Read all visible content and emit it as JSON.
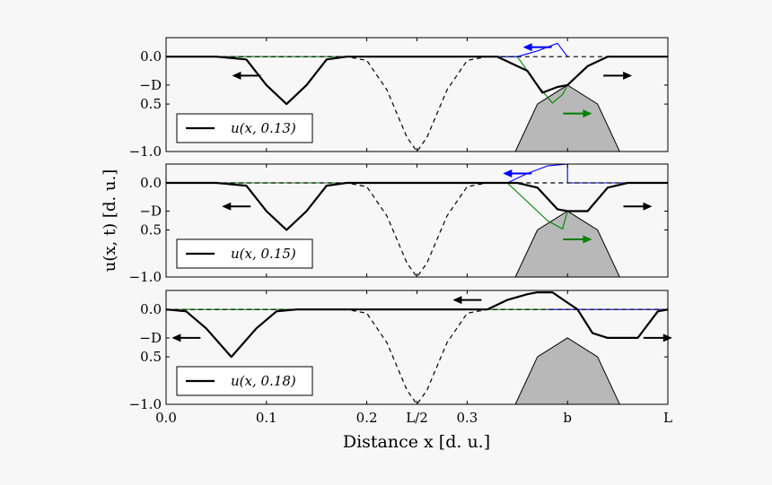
{
  "figure": {
    "xlabel": "Distance x [d. u.]",
    "ylabel": "u(x, t) [d. u.]"
  },
  "chart_data": [
    {
      "type": "line",
      "panel": 1,
      "legend": "u(x, 0.13)",
      "legend_placement": "lower-left",
      "xlim": [
        0.0,
        0.5
      ],
      "ylim": [
        -1.0,
        0.2
      ],
      "x_ticks": [
        {
          "value": 0.0,
          "label": ""
        },
        {
          "value": 0.1,
          "label": ""
        },
        {
          "value": 0.2,
          "label": ""
        },
        {
          "value": 0.25,
          "label": ""
        },
        {
          "value": 0.3,
          "label": ""
        },
        {
          "value": 0.4,
          "label": ""
        },
        {
          "value": 0.5,
          "label": ""
        }
      ],
      "y_ticks": [
        {
          "value": 0.0,
          "label": "0.0"
        },
        {
          "value": -0.3,
          "label": "−D"
        },
        {
          "value": -0.5,
          "label": "0.5"
        },
        {
          "value": -1.0,
          "label": "−1.0"
        }
      ],
      "series": [
        {
          "role": "initial-profile",
          "style": "dashed",
          "color": "#000000",
          "x": [
            0.0,
            0.16,
            0.18,
            0.2,
            0.22,
            0.24,
            0.25,
            0.26,
            0.28,
            0.3,
            0.32,
            0.34,
            0.5
          ],
          "y": [
            0.0,
            0.0,
            0.0,
            -0.04,
            -0.35,
            -0.85,
            -1.0,
            -0.85,
            -0.35,
            -0.04,
            0.0,
            0.0,
            0.0
          ]
        },
        {
          "role": "solution",
          "style": "solid-thick",
          "color": "#000000",
          "x": [
            0.0,
            0.05,
            0.08,
            0.1,
            0.12,
            0.14,
            0.16,
            0.18,
            0.3,
            0.33,
            0.36,
            0.375,
            0.39,
            0.4,
            0.42,
            0.44,
            0.5
          ],
          "y": [
            0.0,
            0.0,
            -0.03,
            -0.3,
            -0.5,
            -0.3,
            -0.03,
            0.0,
            0.0,
            0.0,
            -0.15,
            -0.38,
            -0.32,
            -0.3,
            -0.1,
            0.0,
            0.0
          ]
        },
        {
          "role": "upper-component",
          "style": "solid-thin",
          "color": "#0000ff",
          "x": [
            0.3,
            0.35,
            0.37,
            0.39,
            0.4
          ],
          "y": [
            0.0,
            0.0,
            0.06,
            0.14,
            0.0
          ]
        },
        {
          "role": "lower-component",
          "style": "solid-thin",
          "color": "#008000",
          "x": [
            0.0,
            0.35,
            0.37,
            0.385,
            0.395,
            0.4
          ],
          "y": [
            0.0,
            0.0,
            -0.3,
            -0.49,
            -0.4,
            -0.3
          ]
        },
        {
          "role": "obstacle",
          "style": "filled",
          "color": "#b8b8b8",
          "x": [
            0.348,
            0.37,
            0.4,
            0.43,
            0.452
          ],
          "y": [
            -1.0,
            -0.5,
            -0.3,
            -0.5,
            -1.0
          ]
        }
      ],
      "arrows": [
        {
          "color": "#000000",
          "direction": "left",
          "x": 0.08,
          "y": -0.2
        },
        {
          "color": "#0000ff",
          "direction": "left",
          "x": 0.37,
          "y": 0.1
        },
        {
          "color": "#008000",
          "direction": "right",
          "x": 0.41,
          "y": -0.6
        },
        {
          "color": "#000000",
          "direction": "right",
          "x": 0.45,
          "y": -0.2
        }
      ]
    },
    {
      "type": "line",
      "panel": 2,
      "legend": "u(x, 0.15)",
      "legend_placement": "lower-left",
      "xlim": [
        0.0,
        0.5
      ],
      "ylim": [
        -1.0,
        0.2
      ],
      "x_ticks": [
        {
          "value": 0.0,
          "label": ""
        },
        {
          "value": 0.1,
          "label": ""
        },
        {
          "value": 0.2,
          "label": ""
        },
        {
          "value": 0.25,
          "label": ""
        },
        {
          "value": 0.3,
          "label": ""
        },
        {
          "value": 0.4,
          "label": ""
        },
        {
          "value": 0.5,
          "label": ""
        }
      ],
      "y_ticks": [
        {
          "value": 0.0,
          "label": "0.0"
        },
        {
          "value": -0.3,
          "label": "−D"
        },
        {
          "value": -0.5,
          "label": "0.5"
        },
        {
          "value": -1.0,
          "label": "−1.0"
        }
      ],
      "series": [
        {
          "role": "initial-profile",
          "style": "dashed",
          "color": "#000000",
          "x": [
            0.0,
            0.16,
            0.18,
            0.2,
            0.22,
            0.24,
            0.25,
            0.26,
            0.28,
            0.3,
            0.32,
            0.34,
            0.5
          ],
          "y": [
            0.0,
            0.0,
            0.0,
            -0.04,
            -0.35,
            -0.85,
            -1.0,
            -0.85,
            -0.35,
            -0.04,
            0.0,
            0.0,
            0.0
          ]
        },
        {
          "role": "solution",
          "style": "solid-thick",
          "color": "#000000",
          "x": [
            0.0,
            0.05,
            0.08,
            0.1,
            0.12,
            0.14,
            0.16,
            0.18,
            0.3,
            0.33,
            0.35,
            0.37,
            0.39,
            0.4,
            0.42,
            0.44,
            0.46,
            0.5
          ],
          "y": [
            0.0,
            0.0,
            -0.03,
            -0.3,
            -0.5,
            -0.3,
            -0.03,
            0.0,
            0.0,
            0.0,
            0.0,
            -0.05,
            -0.28,
            -0.3,
            -0.3,
            -0.05,
            0.0,
            0.0
          ]
        },
        {
          "role": "upper-component",
          "style": "solid-thin",
          "color": "#0000ff",
          "x": [
            0.3,
            0.34,
            0.36,
            0.38,
            0.4,
            0.4,
            0.5
          ],
          "y": [
            0.0,
            0.0,
            0.1,
            0.18,
            0.2,
            0.0,
            0.0
          ]
        },
        {
          "role": "lower-component",
          "style": "solid-thin",
          "color": "#008000",
          "x": [
            0.0,
            0.34,
            0.36,
            0.38,
            0.395,
            0.4
          ],
          "y": [
            0.0,
            0.0,
            -0.2,
            -0.4,
            -0.49,
            -0.3
          ]
        },
        {
          "role": "obstacle",
          "style": "filled",
          "color": "#b8b8b8",
          "x": [
            0.348,
            0.37,
            0.4,
            0.43,
            0.452
          ],
          "y": [
            -1.0,
            -0.5,
            -0.3,
            -0.5,
            -1.0
          ]
        }
      ],
      "arrows": [
        {
          "color": "#000000",
          "direction": "left",
          "x": 0.07,
          "y": -0.25
        },
        {
          "color": "#0000ff",
          "direction": "left",
          "x": 0.35,
          "y": 0.1
        },
        {
          "color": "#008000",
          "direction": "right",
          "x": 0.41,
          "y": -0.6
        },
        {
          "color": "#000000",
          "direction": "right",
          "x": 0.47,
          "y": -0.25
        }
      ]
    },
    {
      "type": "line",
      "panel": 3,
      "legend": "u(x, 0.18)",
      "legend_placement": "lower-left",
      "xlim": [
        0.0,
        0.5
      ],
      "ylim": [
        -1.0,
        0.2
      ],
      "x_ticks": [
        {
          "value": 0.0,
          "label": "0.0"
        },
        {
          "value": 0.1,
          "label": "0.1"
        },
        {
          "value": 0.2,
          "label": "0.2"
        },
        {
          "value": 0.25,
          "label": "L/2"
        },
        {
          "value": 0.3,
          "label": "0.3"
        },
        {
          "value": 0.4,
          "label": "b"
        },
        {
          "value": 0.5,
          "label": "L"
        }
      ],
      "y_ticks": [
        {
          "value": 0.0,
          "label": "0.0"
        },
        {
          "value": -0.3,
          "label": "−D"
        },
        {
          "value": -0.5,
          "label": "0.5"
        },
        {
          "value": -1.0,
          "label": "−1.0"
        }
      ],
      "series": [
        {
          "role": "initial-profile",
          "style": "dashed",
          "color": "#000000",
          "x": [
            0.0,
            0.16,
            0.18,
            0.2,
            0.22,
            0.24,
            0.25,
            0.26,
            0.28,
            0.3,
            0.32,
            0.34,
            0.5
          ],
          "y": [
            0.0,
            0.0,
            0.0,
            -0.04,
            -0.35,
            -0.85,
            -1.0,
            -0.85,
            -0.35,
            -0.04,
            0.0,
            0.0,
            0.0
          ]
        },
        {
          "role": "solution",
          "style": "solid-thick",
          "color": "#000000",
          "x": [
            0.0,
            0.02,
            0.04,
            0.065,
            0.09,
            0.11,
            0.13,
            0.3,
            0.32,
            0.34,
            0.36,
            0.37,
            0.38,
            0.385,
            0.41,
            0.425,
            0.44,
            0.46,
            0.47,
            0.49,
            0.5
          ],
          "y": [
            0.0,
            -0.02,
            -0.2,
            -0.5,
            -0.2,
            -0.02,
            0.0,
            0.0,
            0.0,
            0.1,
            0.16,
            0.18,
            0.18,
            0.18,
            0.0,
            -0.25,
            -0.3,
            -0.3,
            -0.3,
            -0.02,
            0.0
          ]
        },
        {
          "role": "upper-component",
          "style": "solid-thin",
          "color": "#0000ff",
          "x": [
            0.38,
            0.39,
            0.4,
            0.5
          ],
          "y": [
            0.0,
            0.0,
            0.0,
            0.0
          ]
        },
        {
          "role": "lower-component",
          "style": "solid-thin",
          "color": "#008000",
          "x": [
            0.0,
            0.38
          ],
          "y": [
            0.0,
            0.0
          ]
        },
        {
          "role": "obstacle",
          "style": "filled",
          "color": "#b8b8b8",
          "x": [
            0.348,
            0.37,
            0.4,
            0.43,
            0.452
          ],
          "y": [
            -1.0,
            -0.5,
            -0.3,
            -0.5,
            -1.0
          ]
        }
      ],
      "arrows": [
        {
          "color": "#000000",
          "direction": "left",
          "x": 0.02,
          "y": -0.3
        },
        {
          "color": "#000000",
          "direction": "left",
          "x": 0.3,
          "y": 0.1
        },
        {
          "color": "#000000",
          "direction": "right",
          "x": 0.49,
          "y": -0.3
        }
      ]
    }
  ]
}
